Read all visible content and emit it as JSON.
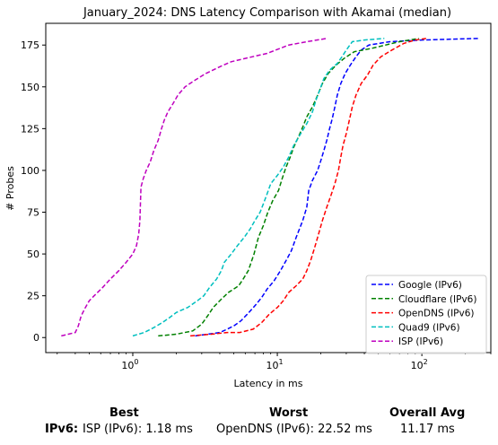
{
  "chart_data": {
    "type": "line",
    "title": "January_2024: DNS Latency Comparison with Akamai (median)",
    "xlabel": "Latency in ms",
    "ylabel": "# Probes",
    "xscale": "log",
    "xlim": [
      0.25,
      300
    ],
    "ylim": [
      -9,
      188
    ],
    "x_ticks": [
      1,
      10,
      100
    ],
    "x_tick_labels": [
      "10^0",
      "10^1",
      "10^2"
    ],
    "y_ticks": [
      0,
      25,
      50,
      75,
      100,
      125,
      150,
      175
    ],
    "grid": false,
    "legend_position": "lower-right",
    "series": [
      {
        "name": "Google (IPv6)",
        "color": "#0000ff",
        "dash": "dashed",
        "points": [
          [
            2.7,
            1
          ],
          [
            3.3,
            2
          ],
          [
            4.0,
            3
          ],
          [
            4.5,
            5
          ],
          [
            5.0,
            7
          ],
          [
            5.6,
            10
          ],
          [
            6.2,
            14
          ],
          [
            7.0,
            19
          ],
          [
            7.8,
            24
          ],
          [
            8.5,
            29
          ],
          [
            9.5,
            34
          ],
          [
            10.5,
            40
          ],
          [
            11.5,
            46
          ],
          [
            12.5,
            52
          ],
          [
            13.5,
            60
          ],
          [
            15.0,
            70
          ],
          [
            16.0,
            78
          ],
          [
            16.5,
            88
          ],
          [
            17.5,
            94
          ],
          [
            19.0,
            100
          ],
          [
            20.0,
            106
          ],
          [
            21.0,
            112
          ],
          [
            22.0,
            118
          ],
          [
            23.0,
            125
          ],
          [
            24.0,
            131
          ],
          [
            25.0,
            138
          ],
          [
            26.0,
            145
          ],
          [
            27.5,
            152
          ],
          [
            29.5,
            158
          ],
          [
            32.0,
            163
          ],
          [
            35.0,
            168
          ],
          [
            38.0,
            172
          ],
          [
            43.0,
            175
          ],
          [
            60.0,
            177
          ],
          [
            100.0,
            178
          ],
          [
            250.0,
            179
          ]
        ]
      },
      {
        "name": "Cloudflare (IPv6)",
        "color": "#008000",
        "dash": "dashed",
        "points": [
          [
            1.5,
            1
          ],
          [
            2.0,
            2
          ],
          [
            2.6,
            4
          ],
          [
            3.0,
            8
          ],
          [
            3.3,
            13
          ],
          [
            3.6,
            18
          ],
          [
            4.1,
            23
          ],
          [
            4.6,
            27
          ],
          [
            5.4,
            31
          ],
          [
            5.8,
            35
          ],
          [
            6.3,
            40
          ],
          [
            6.9,
            50
          ],
          [
            7.4,
            60
          ],
          [
            8.0,
            67
          ],
          [
            8.6,
            75
          ],
          [
            9.3,
            82
          ],
          [
            10.2,
            88
          ],
          [
            10.8,
            95
          ],
          [
            11.5,
            102
          ],
          [
            12.3,
            108
          ],
          [
            13.0,
            114
          ],
          [
            14.0,
            120
          ],
          [
            15.0,
            126
          ],
          [
            16.0,
            132
          ],
          [
            17.5,
            138
          ],
          [
            19.0,
            145
          ],
          [
            20.5,
            152
          ],
          [
            22.5,
            158
          ],
          [
            25.5,
            163
          ],
          [
            29.0,
            167
          ],
          [
            34.0,
            171
          ],
          [
            45.0,
            173
          ],
          [
            70.0,
            177
          ],
          [
            95.0,
            179
          ]
        ]
      },
      {
        "name": "OpenDNS (IPv6)",
        "color": "#ff0000",
        "dash": "dashed",
        "points": [
          [
            2.5,
            1
          ],
          [
            3.5,
            2
          ],
          [
            4.5,
            3
          ],
          [
            5.5,
            3
          ],
          [
            6.8,
            5
          ],
          [
            7.8,
            9
          ],
          [
            8.8,
            14
          ],
          [
            10.0,
            18
          ],
          [
            11.0,
            22
          ],
          [
            12.0,
            27
          ],
          [
            13.5,
            31
          ],
          [
            15.0,
            35
          ],
          [
            16.0,
            40
          ],
          [
            17.0,
            46
          ],
          [
            18.0,
            53
          ],
          [
            19.0,
            60
          ],
          [
            20.5,
            70
          ],
          [
            22.0,
            78
          ],
          [
            23.5,
            85
          ],
          [
            25.0,
            92
          ],
          [
            26.5,
            100
          ],
          [
            27.5,
            108
          ],
          [
            28.5,
            115
          ],
          [
            30.0,
            122
          ],
          [
            31.5,
            130
          ],
          [
            33.0,
            138
          ],
          [
            35.0,
            145
          ],
          [
            38.0,
            152
          ],
          [
            42.0,
            157
          ],
          [
            46.0,
            163
          ],
          [
            52.0,
            168
          ],
          [
            62.0,
            172
          ],
          [
            75.0,
            176
          ],
          [
            90.0,
            178
          ],
          [
            108.0,
            179
          ]
        ]
      },
      {
        "name": "Quad9 (IPv6)",
        "color": "#00bfbf",
        "dash": "dashed",
        "points": [
          [
            1.0,
            1
          ],
          [
            1.2,
            3
          ],
          [
            1.4,
            6
          ],
          [
            1.6,
            9
          ],
          [
            1.8,
            12
          ],
          [
            2.0,
            15
          ],
          [
            2.4,
            18
          ],
          [
            2.8,
            22
          ],
          [
            3.1,
            25
          ],
          [
            3.4,
            30
          ],
          [
            3.8,
            35
          ],
          [
            4.1,
            40
          ],
          [
            4.3,
            45
          ],
          [
            4.8,
            50
          ],
          [
            5.3,
            55
          ],
          [
            5.9,
            60
          ],
          [
            6.5,
            65
          ],
          [
            7.0,
            70
          ],
          [
            7.6,
            75
          ],
          [
            8.0,
            80
          ],
          [
            8.5,
            86
          ],
          [
            9.0,
            92
          ],
          [
            10.0,
            97
          ],
          [
            11.0,
            102
          ],
          [
            12.0,
            108
          ],
          [
            13.0,
            115
          ],
          [
            14.5,
            122
          ],
          [
            16.0,
            128
          ],
          [
            17.5,
            135
          ],
          [
            18.5,
            142
          ],
          [
            20.0,
            150
          ],
          [
            21.0,
            155
          ],
          [
            23.0,
            160
          ],
          [
            26.0,
            164
          ],
          [
            28.0,
            168
          ],
          [
            30.0,
            172
          ],
          [
            33.0,
            177
          ],
          [
            40.0,
            178
          ],
          [
            55.0,
            179
          ]
        ]
      },
      {
        "name": "ISP (IPv6)",
        "color": "#bf00bf",
        "dash": "dashed",
        "points": [
          [
            0.32,
            1
          ],
          [
            0.4,
            3
          ],
          [
            0.42,
            7
          ],
          [
            0.44,
            13
          ],
          [
            0.47,
            18
          ],
          [
            0.5,
            22
          ],
          [
            0.54,
            25
          ],
          [
            0.62,
            30
          ],
          [
            0.7,
            35
          ],
          [
            0.8,
            40
          ],
          [
            0.9,
            45
          ],
          [
            1.0,
            50
          ],
          [
            1.06,
            55
          ],
          [
            1.1,
            62
          ],
          [
            1.12,
            70
          ],
          [
            1.13,
            80
          ],
          [
            1.14,
            90
          ],
          [
            1.18,
            95
          ],
          [
            1.24,
            100
          ],
          [
            1.32,
            105
          ],
          [
            1.4,
            112
          ],
          [
            1.5,
            118
          ],
          [
            1.58,
            125
          ],
          [
            1.65,
            130
          ],
          [
            1.75,
            135
          ],
          [
            1.9,
            140
          ],
          [
            2.05,
            145
          ],
          [
            2.3,
            150
          ],
          [
            2.7,
            154
          ],
          [
            3.2,
            158
          ],
          [
            4.0,
            162
          ],
          [
            4.8,
            165
          ],
          [
            6.0,
            167
          ],
          [
            8.5,
            170
          ],
          [
            12.0,
            175
          ],
          [
            16.0,
            177
          ],
          [
            22.0,
            179
          ]
        ]
      }
    ]
  },
  "summary": {
    "best_header": "Best",
    "worst_header": "Worst",
    "avg_header": "Overall Avg",
    "row_label": "IPv6:",
    "best_value": "ISP (IPv6): 1.18 ms",
    "worst_value": "OpenDNS (IPv6): 22.52 ms",
    "avg_value": "11.17 ms"
  }
}
